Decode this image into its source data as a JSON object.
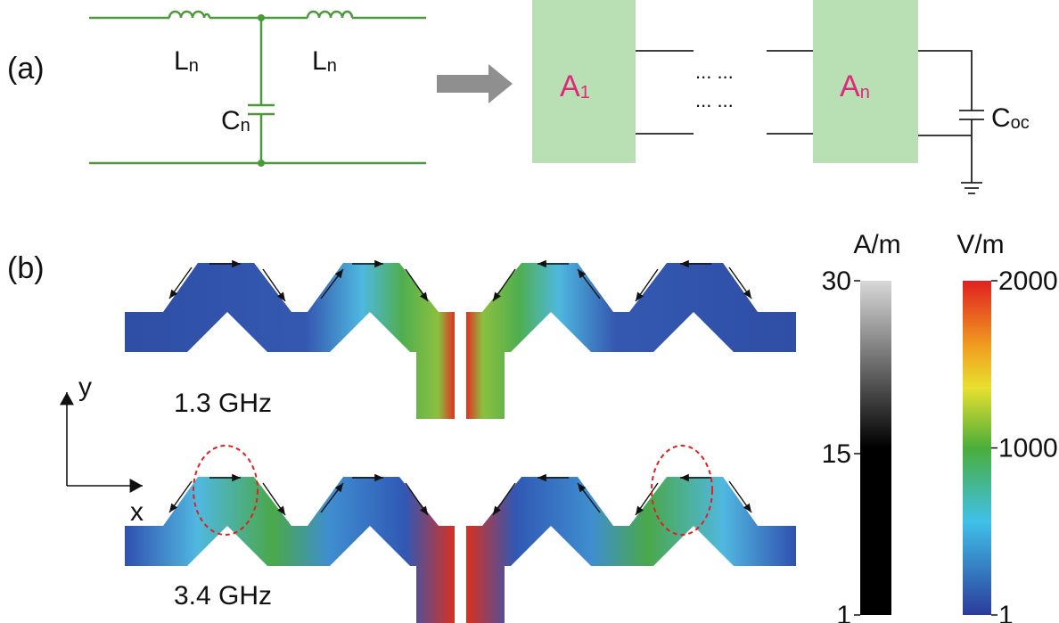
{
  "panel_a": {
    "label": "(a)",
    "inductor_1": {
      "main": "L",
      "sub": "n"
    },
    "inductor_2": {
      "main": "L",
      "sub": "n"
    },
    "capacitor": {
      "main": "C",
      "sub": "n"
    },
    "block_1": {
      "main": "A",
      "sub": "1"
    },
    "block_n": {
      "main": "A",
      "sub": "n"
    },
    "ellipsis_top": "... ...",
    "ellipsis_bottom": "... ...",
    "load_capacitor": {
      "main": "C",
      "sub": "oc"
    }
  },
  "panel_b": {
    "label": "(b)",
    "axis_y": "y",
    "axis_x": "x",
    "freq_1": "1.3 GHz",
    "freq_2": "3.4 GHz"
  },
  "colorbars": [
    {
      "unit": "A/m",
      "lim": [
        1,
        30
      ],
      "ticks": [
        1,
        15,
        30
      ]
    },
    {
      "unit": "V/m",
      "lim": [
        1,
        2000
      ],
      "ticks": [
        1,
        1000,
        2000
      ]
    }
  ]
}
